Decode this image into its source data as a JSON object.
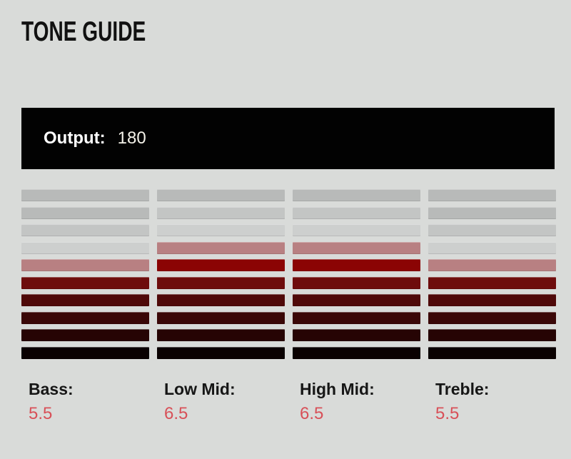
{
  "title": "TONE GUIDE",
  "output": {
    "label": "Output:",
    "value": "180"
  },
  "chart_data": {
    "type": "bar",
    "subtype": "segmented-eq-meter",
    "title": "TONE GUIDE",
    "categories": [
      "Bass",
      "Low Mid",
      "High Mid",
      "Treble"
    ],
    "values": [
      5.5,
      6.5,
      6.5,
      5.5
    ],
    "scale_min": 0,
    "scale_max": 10,
    "segments_per_column": 10,
    "output_level": 180,
    "legend": "none",
    "layout_note": "Four columns of 10 stacked horizontal segments; filled from bottom with dark-red-to-black gradient, topmost filled half-step shown pink, empty segments gray"
  },
  "columns": [
    {
      "label": "Bass:",
      "value": "5.5",
      "segment_colors": [
        "#b8bab9",
        "#b8bab9",
        "#c3c5c4",
        "#cdcfce",
        "#b88082",
        "#6e0c0c",
        "#4f0909",
        "#3a0707",
        "#260404",
        "#0a0101"
      ]
    },
    {
      "label": "Low Mid:",
      "value": "6.5",
      "segment_colors": [
        "#b8bab9",
        "#c3c5c4",
        "#cdcfce",
        "#b88082",
        "#8b0404",
        "#6e0c0c",
        "#4f0909",
        "#3a0707",
        "#260404",
        "#0a0101"
      ]
    },
    {
      "label": "High Mid:",
      "value": "6.5",
      "segment_colors": [
        "#b8bab9",
        "#c3c5c4",
        "#cdcfce",
        "#b88082",
        "#8b0404",
        "#6e0c0c",
        "#4f0909",
        "#3a0707",
        "#260404",
        "#0a0101"
      ]
    },
    {
      "label": "Treble:",
      "value": "5.5",
      "segment_colors": [
        "#b8bab9",
        "#b8bab9",
        "#c3c5c4",
        "#cdcfce",
        "#b88082",
        "#6e0c0c",
        "#4f0909",
        "#3a0707",
        "#260404",
        "#0a0101"
      ]
    }
  ],
  "colors": {
    "background": "#d9dbd9",
    "title_text": "#111111",
    "output_bar_bg": "#020202",
    "output_label_text": "#ffffff",
    "output_value_text": "#f5f3ea",
    "column_label_text": "#161616",
    "column_value_text": "#d85058",
    "empty_gray_far": "#b8bab9",
    "empty_gray_mid": "#c3c5c4",
    "empty_gray_near": "#cdcfce",
    "half_step_pink": "#b88082",
    "full_red_top": "#8b0404",
    "full_black_bottom": "#0a0101"
  }
}
